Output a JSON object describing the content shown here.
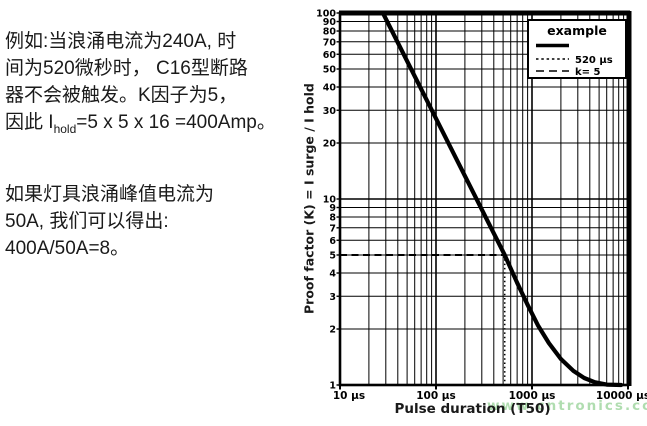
{
  "text_panel": {
    "p1_line1": "例如:当浪涌电流为240A, 时",
    "p1_line2": "间为520微秒时， C16型断路",
    "p1_line3": "器不会被触发。K因子为5，",
    "p1_line4_prefix": "因此 I",
    "p1_line4_sub": "hold",
    "p1_line4_suffix": "=5 x 5 x 16 =400Amp。",
    "p2_line1": "如果灯具浪涌峰值电流为",
    "p2_line2": "50A, 我们可以得出:",
    "p2_line3": "400A/50A=8。"
  },
  "chart_data": {
    "type": "line",
    "x_scale": "log",
    "y_scale": "log",
    "xlim": [
      10,
      10000
    ],
    "ylim": [
      1,
      100
    ],
    "xlabel": "Pulse duration (T50)",
    "ylabel": "Proof factor (K) = I surge / I hold",
    "grid": "full black log grid, minor and major lines",
    "x_ticks": [
      {
        "value": 10,
        "label": "10 μs"
      },
      {
        "value": 100,
        "label": "100 μs"
      },
      {
        "value": 1000,
        "label": "1000 μs"
      },
      {
        "value": 10000,
        "label": "10000 μs"
      }
    ],
    "y_tick_values": [
      1,
      2,
      3,
      4,
      5,
      6,
      7,
      8,
      9,
      10,
      20,
      30,
      40,
      50,
      60,
      70,
      80,
      90,
      100
    ],
    "legend": {
      "title": "example",
      "position": "top-right",
      "entries": [
        {
          "style": "solid",
          "label": ""
        },
        {
          "style": "dotted",
          "label": "520 μs"
        },
        {
          "style": "dashed",
          "label": "k= 5"
        }
      ]
    },
    "series": [
      {
        "name": "example",
        "style": "solid",
        "color": "#000000",
        "points": [
          [
            28,
            100
          ],
          [
            520,
            5
          ],
          [
            700,
            3.55
          ],
          [
            900,
            2.7
          ],
          [
            1150,
            2.1
          ],
          [
            1500,
            1.68
          ],
          [
            2000,
            1.38
          ],
          [
            2700,
            1.19
          ],
          [
            3500,
            1.09
          ],
          [
            4500,
            1.035
          ],
          [
            6000,
            1.005
          ],
          [
            8500,
            1.0
          ]
        ]
      }
    ],
    "reference_lines": [
      {
        "name": "pulse-520us",
        "orientation": "vertical",
        "x": 520,
        "to_k": 5,
        "style": "dotted"
      },
      {
        "name": "k-equals-5",
        "orientation": "horizontal",
        "k": 5,
        "to_x": 520,
        "style": "dashed"
      }
    ],
    "line_color": "#000000"
  },
  "watermark": {
    "text": "www.cntronics.com",
    "color": "#7cc77c"
  }
}
